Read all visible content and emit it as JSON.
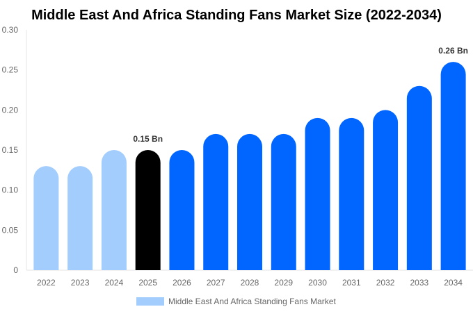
{
  "chart_data": {
    "type": "bar",
    "title": "Middle East And Africa Standing Fans Market Size (2022-2034)",
    "xlabel": "",
    "ylabel": "",
    "categories": [
      "2022",
      "2023",
      "2024",
      "2025",
      "2026",
      "2027",
      "2028",
      "2029",
      "2030",
      "2031",
      "2032",
      "2033",
      "2034"
    ],
    "series": [
      {
        "name": "Middle East And Africa Standing Fans Market",
        "values": [
          0.13,
          0.13,
          0.15,
          0.15,
          0.15,
          0.17,
          0.17,
          0.17,
          0.19,
          0.19,
          0.2,
          0.23,
          0.26
        ]
      }
    ],
    "ylim": [
      0,
      0.3
    ],
    "yticks": [
      "0",
      "0.05",
      "0.10",
      "0.15",
      "0.20",
      "0.25",
      "0.30"
    ],
    "annotations": [
      {
        "category": "2025",
        "text": "0.15 Bn"
      },
      {
        "category": "2034",
        "text": "0.26 Bn"
      }
    ],
    "grid": false,
    "legend_position": "bottom",
    "colors": {
      "historical": "#a3cdfd",
      "current": "#000000",
      "forecast": "#0066ff"
    },
    "bar_color_groups": [
      "historical",
      "historical",
      "historical",
      "current",
      "forecast",
      "forecast",
      "forecast",
      "forecast",
      "forecast",
      "forecast",
      "forecast",
      "forecast",
      "forecast"
    ]
  }
}
